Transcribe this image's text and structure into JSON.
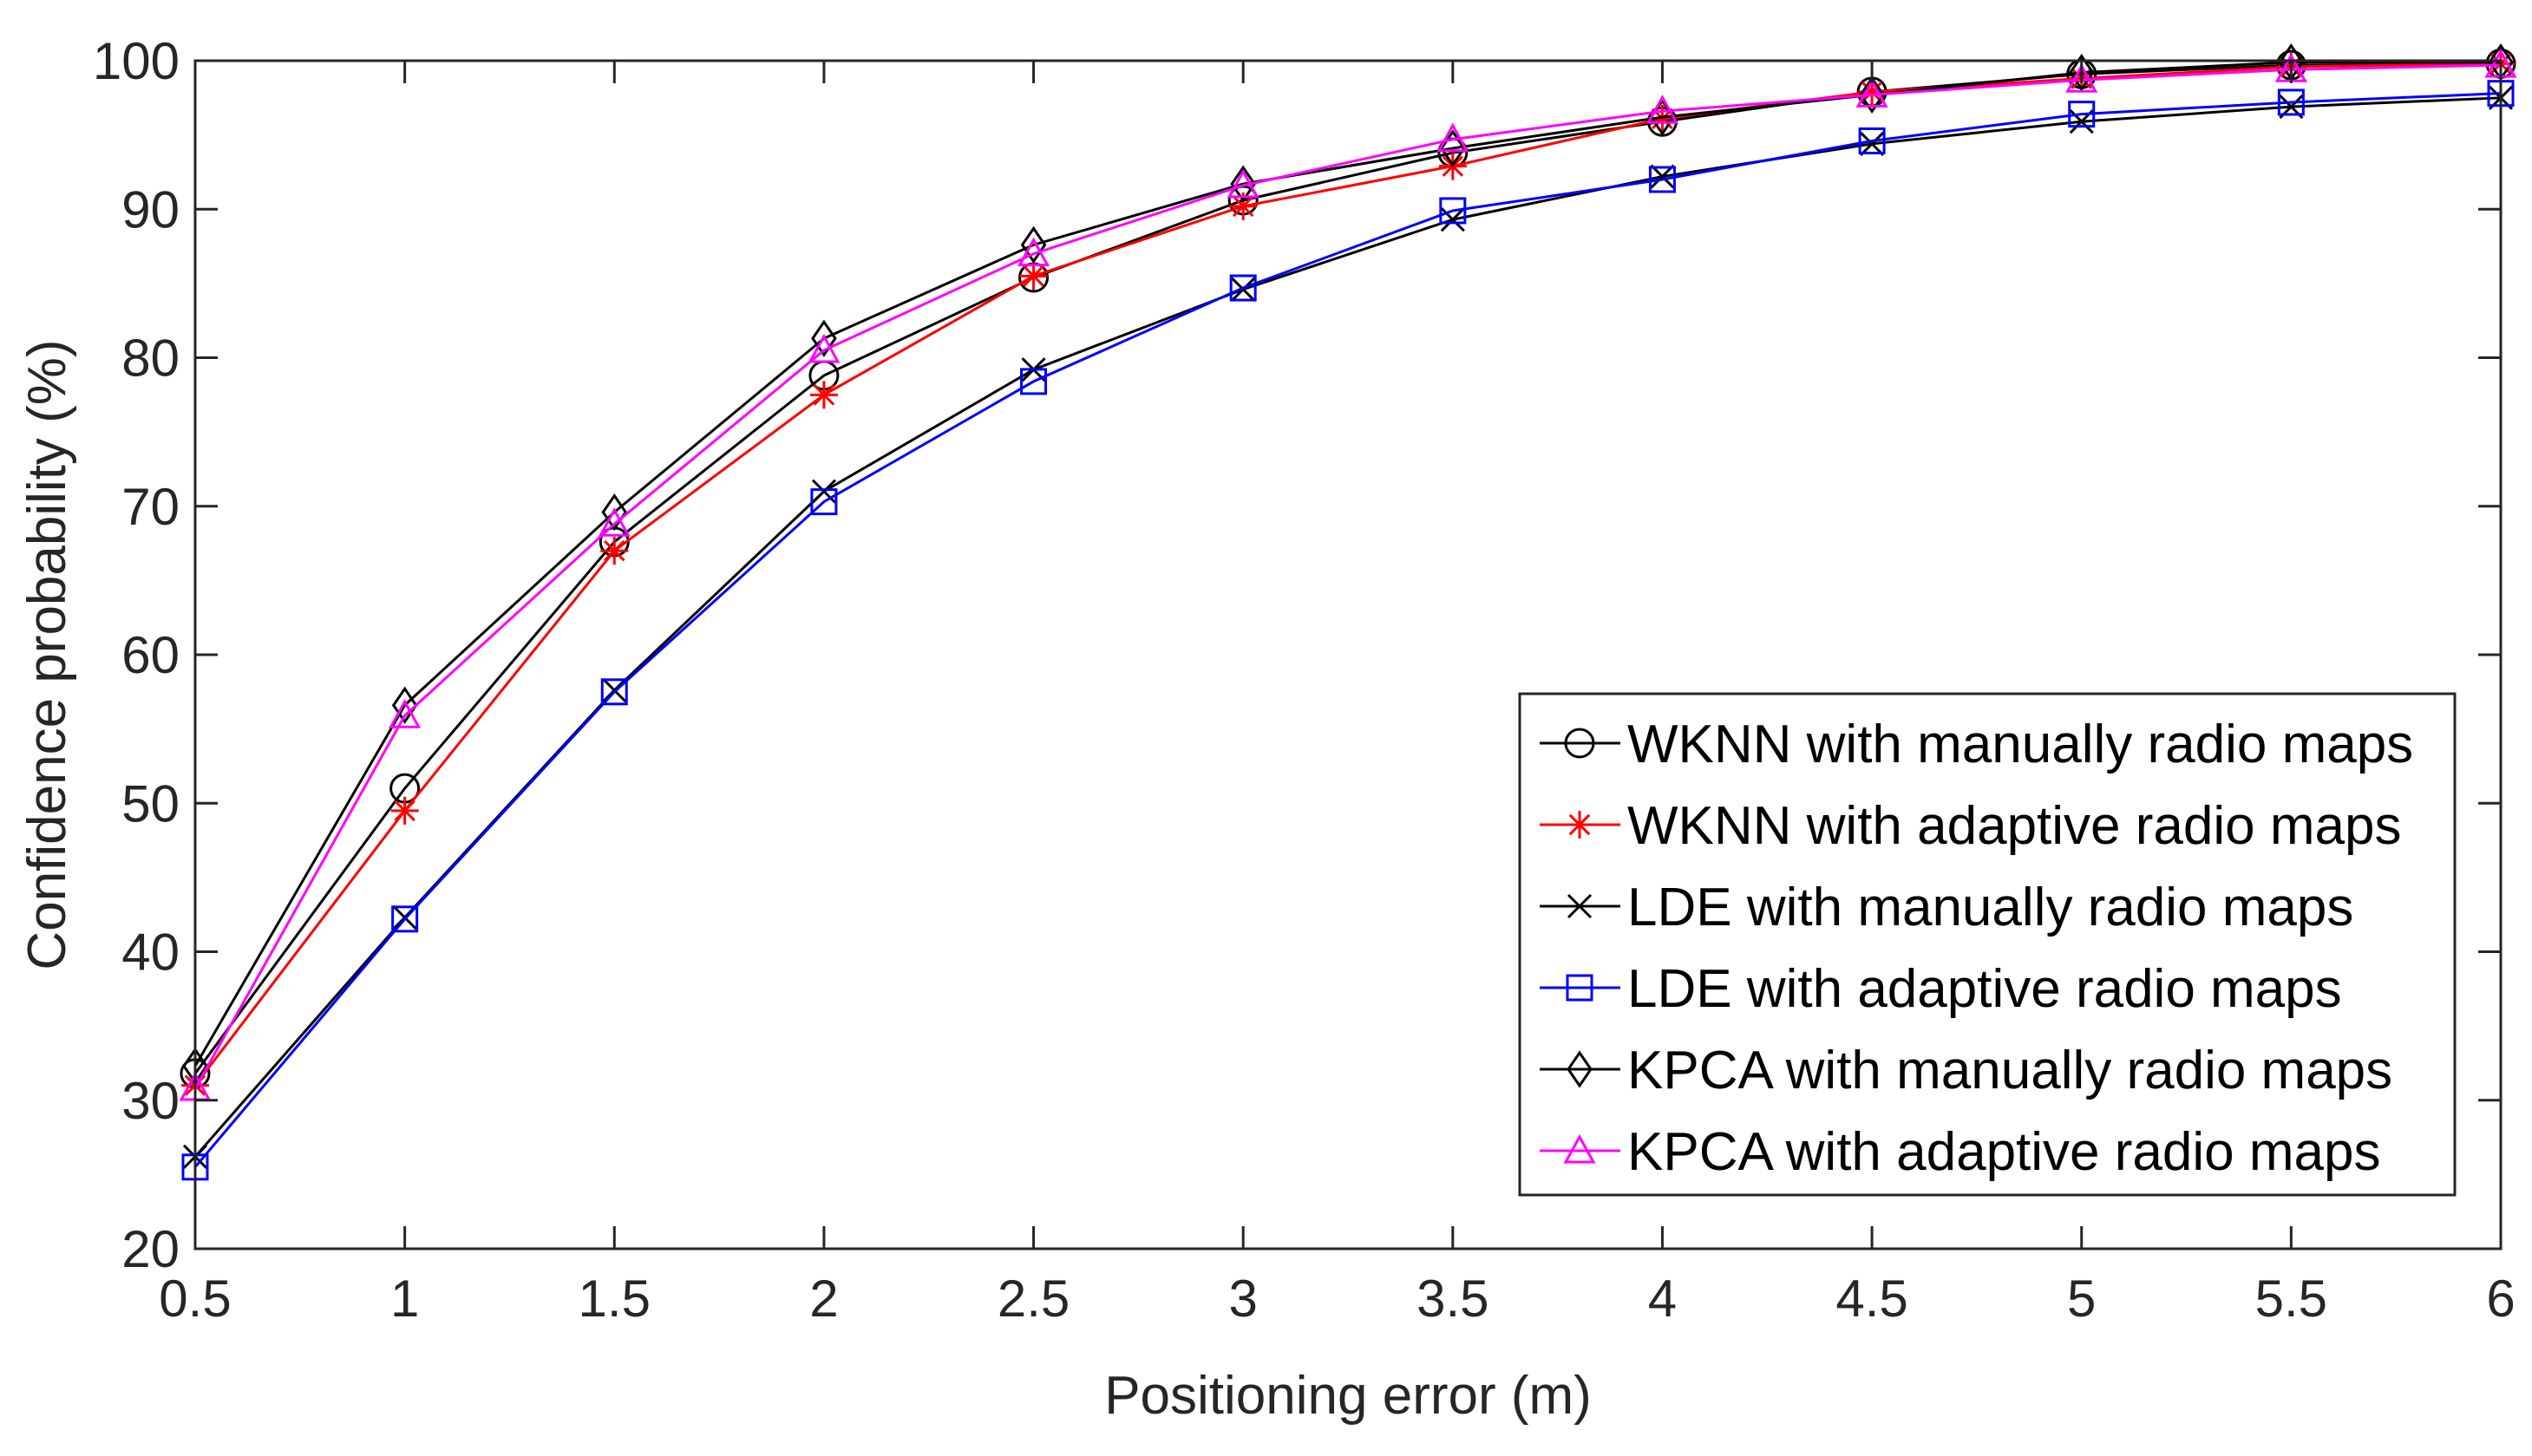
{
  "chart_data": {
    "type": "line",
    "xlabel": "Positioning error (m)",
    "ylabel": "Confidence probability (%)",
    "xlim": [
      0.5,
      6
    ],
    "ylim": [
      20,
      100
    ],
    "x": [
      0.5,
      1,
      1.5,
      2,
      2.5,
      3,
      3.5,
      4,
      4.5,
      5,
      5.5,
      6
    ],
    "x_tick_labels": [
      "0.5",
      "1",
      "1.5",
      "2",
      "2.5",
      "3",
      "3.5",
      "4",
      "4.5",
      "5",
      "5.5",
      "6"
    ],
    "y_ticks": [
      20,
      30,
      40,
      50,
      60,
      70,
      80,
      90,
      100
    ],
    "y_tick_labels": [
      "20",
      "30",
      "40",
      "50",
      "60",
      "70",
      "80",
      "90",
      "100"
    ],
    "grid": false,
    "legend_position": "bottom-right",
    "series": [
      {
        "name": "WKNN with manually radio maps",
        "color": "#000000",
        "marker": "circle",
        "values": [
          31.8,
          51.0,
          67.6,
          78.8,
          85.4,
          90.6,
          93.8,
          95.9,
          97.9,
          99.1,
          99.7,
          99.8
        ]
      },
      {
        "name": "WKNN with adaptive radio maps",
        "color": "#ff0000",
        "marker": "asterisk",
        "values": [
          31.0,
          49.5,
          67.0,
          77.5,
          85.5,
          90.2,
          92.9,
          96.1,
          97.9,
          98.8,
          99.6,
          99.8
        ]
      },
      {
        "name": "LDE with manually radio maps",
        "color": "#000000",
        "marker": "x",
        "values": [
          26.2,
          42.3,
          57.6,
          71.0,
          79.2,
          84.6,
          89.3,
          92.2,
          94.4,
          95.9,
          96.9,
          97.5
        ]
      },
      {
        "name": "LDE with adaptive radio maps",
        "color": "#0000ff",
        "marker": "square",
        "values": [
          25.5,
          42.2,
          57.5,
          70.3,
          78.4,
          84.7,
          89.9,
          92.0,
          94.6,
          96.4,
          97.2,
          97.8
        ]
      },
      {
        "name": "KPCA with manually radio maps",
        "color": "#000000",
        "marker": "diamond",
        "values": [
          32.3,
          56.6,
          69.6,
          81.3,
          87.6,
          91.7,
          94.1,
          96.2,
          97.7,
          99.2,
          99.9,
          99.9
        ]
      },
      {
        "name": "KPCA with adaptive radio maps",
        "color": "#ff00ff",
        "marker": "triangle",
        "values": [
          30.8,
          55.9,
          68.8,
          80.5,
          87.0,
          91.6,
          94.7,
          96.6,
          97.7,
          98.7,
          99.4,
          99.7
        ]
      }
    ]
  }
}
